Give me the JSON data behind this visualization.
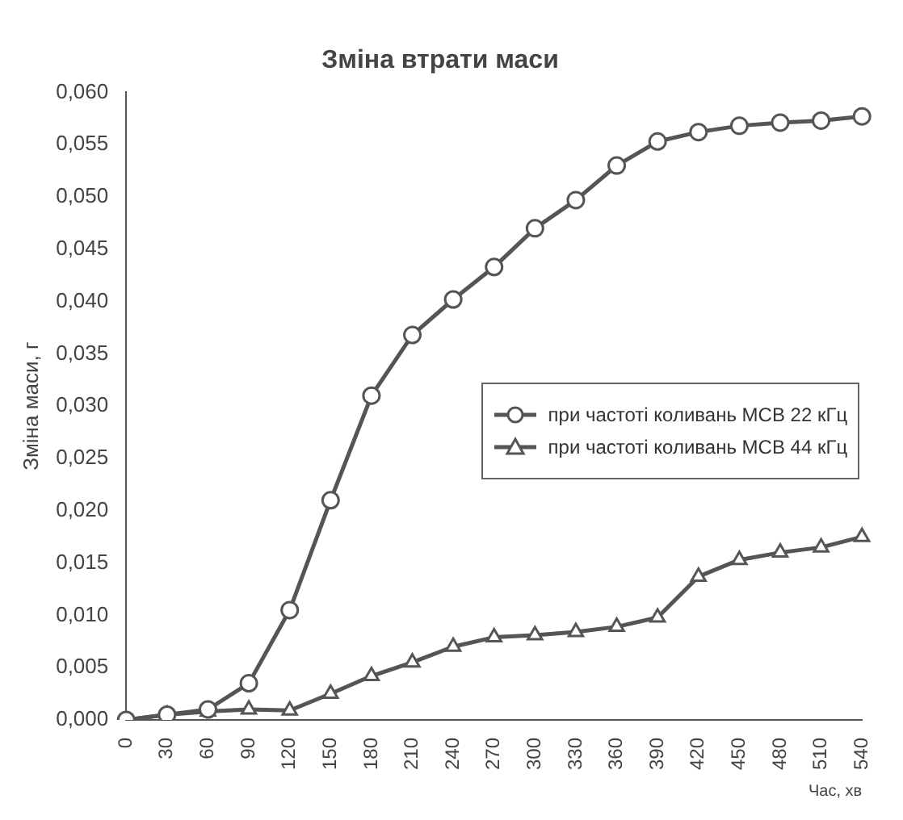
{
  "chart_data": {
    "type": "line",
    "title": "Зміна втрати маси",
    "xlabel": "Час, хв",
    "ylabel": "Зміна маси, г",
    "categories": [
      "0",
      "30",
      "60",
      "90",
      "120",
      "150",
      "180",
      "210",
      "240",
      "270",
      "300",
      "330",
      "360",
      "390",
      "420",
      "450",
      "480",
      "510",
      "540"
    ],
    "series": [
      {
        "name": "при частоті коливань МСВ 22 кГц",
        "color": "#555555",
        "marker": "circle",
        "values": [
          0,
          0.0005,
          0.001,
          0.0035,
          0.0105,
          0.021,
          0.031,
          0.0368,
          0.0402,
          0.0433,
          0.047,
          0.0497,
          0.053,
          0.0553,
          0.0562,
          0.0568,
          0.0571,
          0.0573,
          0.0577
        ]
      },
      {
        "name": "при частоті коливань МСВ 44 кГц",
        "color": "#555555",
        "marker": "triangle",
        "values": [
          0,
          0.0005,
          0.0008,
          0.001,
          0.0009,
          0.0025,
          0.0042,
          0.0055,
          0.007,
          0.0079,
          0.0081,
          0.0084,
          0.0089,
          0.0098,
          0.0137,
          0.0153,
          0.016,
          0.0165,
          0.0175
        ]
      }
    ],
    "ylim": [
      0,
      0.06
    ],
    "yticks": [
      {
        "value": 0,
        "label": "0,000"
      },
      {
        "value": 0.005,
        "label": "0,005"
      },
      {
        "value": 0.01,
        "label": "0,010"
      },
      {
        "value": 0.015,
        "label": "0,015"
      },
      {
        "value": 0.02,
        "label": "0,020"
      },
      {
        "value": 0.025,
        "label": "0,025"
      },
      {
        "value": 0.03,
        "label": "0,030"
      },
      {
        "value": 0.035,
        "label": "0,035"
      },
      {
        "value": 0.04,
        "label": "0,040"
      },
      {
        "value": 0.045,
        "label": "0,045"
      },
      {
        "value": 0.05,
        "label": "0,050"
      },
      {
        "value": 0.055,
        "label": "0,055"
      },
      {
        "value": 0.06,
        "label": "0,060"
      }
    ],
    "grid": false,
    "legend": "right",
    "line_style": "solid"
  }
}
